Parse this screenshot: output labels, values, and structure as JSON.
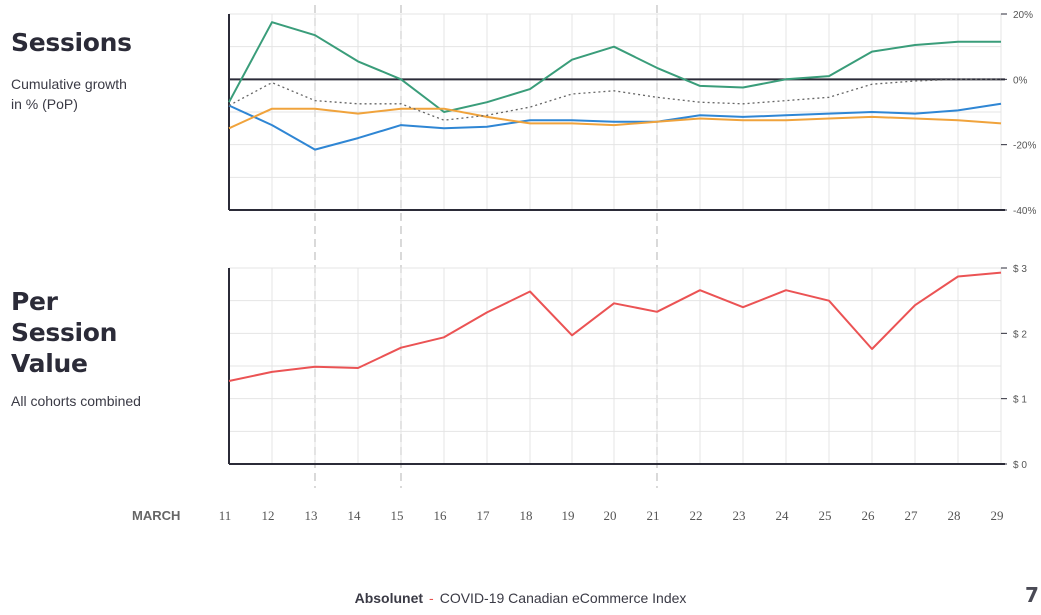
{
  "colors": {
    "green": "#3a9d7a",
    "blue": "#2f86d4",
    "orange": "#f0a33c",
    "dotted": "#666666",
    "red": "#eb5354",
    "axis": "#2b2b38",
    "grid": "#e4e4e4",
    "dashed": "#d0d0d0"
  },
  "sessions": {
    "title": "Sessions",
    "subtitle_line1": "Cumulative growth",
    "subtitle_line2": "in % (PoP)"
  },
  "per_session": {
    "title_line1": "Per",
    "title_line2": "Session",
    "title_line3": "Value",
    "subtitle": "All cohorts combined"
  },
  "x_axis": {
    "month_label": "MARCH",
    "days": [
      "11",
      "12",
      "13",
      "14",
      "15",
      "16",
      "17",
      "18",
      "19",
      "20",
      "21",
      "22",
      "23",
      "24",
      "25",
      "26",
      "27",
      "28",
      "29"
    ]
  },
  "footer": {
    "brand": "Absolunet",
    "separator": "-",
    "text": "COVID-19 Canadian eCommerce Index",
    "page": "7"
  },
  "chart_data": [
    {
      "type": "line",
      "title": "Sessions",
      "ylabel": "Cumulative growth in % (PoP)",
      "ylim": [
        -40,
        20
      ],
      "yticks": [
        20,
        0,
        -20,
        -40
      ],
      "ytick_labels": [
        "20%",
        "0%",
        "-20%",
        "-40%"
      ],
      "x": [
        "11",
        "12",
        "13",
        "14",
        "15",
        "16",
        "17",
        "18",
        "19",
        "20",
        "21",
        "22",
        "23",
        "24",
        "25",
        "26",
        "27",
        "28",
        "29"
      ],
      "series": [
        {
          "name": "green",
          "values": [
            -7,
            17.5,
            13.5,
            5.5,
            0,
            -10,
            -7,
            -3,
            6,
            10,
            3.5,
            -2,
            -2.5,
            0,
            1,
            8.5,
            10.5,
            11.5,
            11.5
          ]
        },
        {
          "name": "blue",
          "values": [
            -8,
            -14,
            -21.5,
            -18,
            -14,
            -15,
            -14.5,
            -12.5,
            -12.5,
            -13,
            -13,
            -11,
            -11.5,
            -11,
            -10.5,
            -10,
            -10.5,
            -9.5,
            -7.5
          ]
        },
        {
          "name": "orange",
          "values": [
            -15,
            -9,
            -9,
            -10.5,
            -9,
            -9,
            -11.5,
            -13.5,
            -13.5,
            -14,
            -13,
            -12,
            -12.5,
            -12.5,
            -12,
            -11.5,
            -12,
            -12.5,
            -13.5
          ]
        },
        {
          "name": "dotted",
          "values": [
            -8,
            -1,
            -6.5,
            -7.5,
            -7.5,
            -12.5,
            -11,
            -8.5,
            -4.5,
            -3.5,
            -5.5,
            -7,
            -7.5,
            -6.5,
            -5.5,
            -1.5,
            -0.5,
            0,
            0
          ]
        }
      ]
    },
    {
      "type": "line",
      "title": "Per Session Value",
      "ylabel": "All cohorts combined",
      "ylim": [
        0,
        3
      ],
      "yticks": [
        3,
        2,
        1,
        0
      ],
      "ytick_labels": [
        "$ 3",
        "$ 2",
        "$ 1",
        "$ 0"
      ],
      "x": [
        "11",
        "12",
        "13",
        "14",
        "15",
        "16",
        "17",
        "18",
        "19",
        "20",
        "21",
        "22",
        "23",
        "24",
        "25",
        "26",
        "27",
        "28",
        "29"
      ],
      "series": [
        {
          "name": "red",
          "values": [
            1.27,
            1.41,
            1.49,
            1.47,
            1.78,
            1.94,
            2.32,
            2.64,
            1.97,
            2.46,
            2.33,
            2.66,
            2.4,
            2.66,
            2.5,
            1.76,
            2.43,
            2.87,
            2.93
          ]
        }
      ]
    }
  ]
}
